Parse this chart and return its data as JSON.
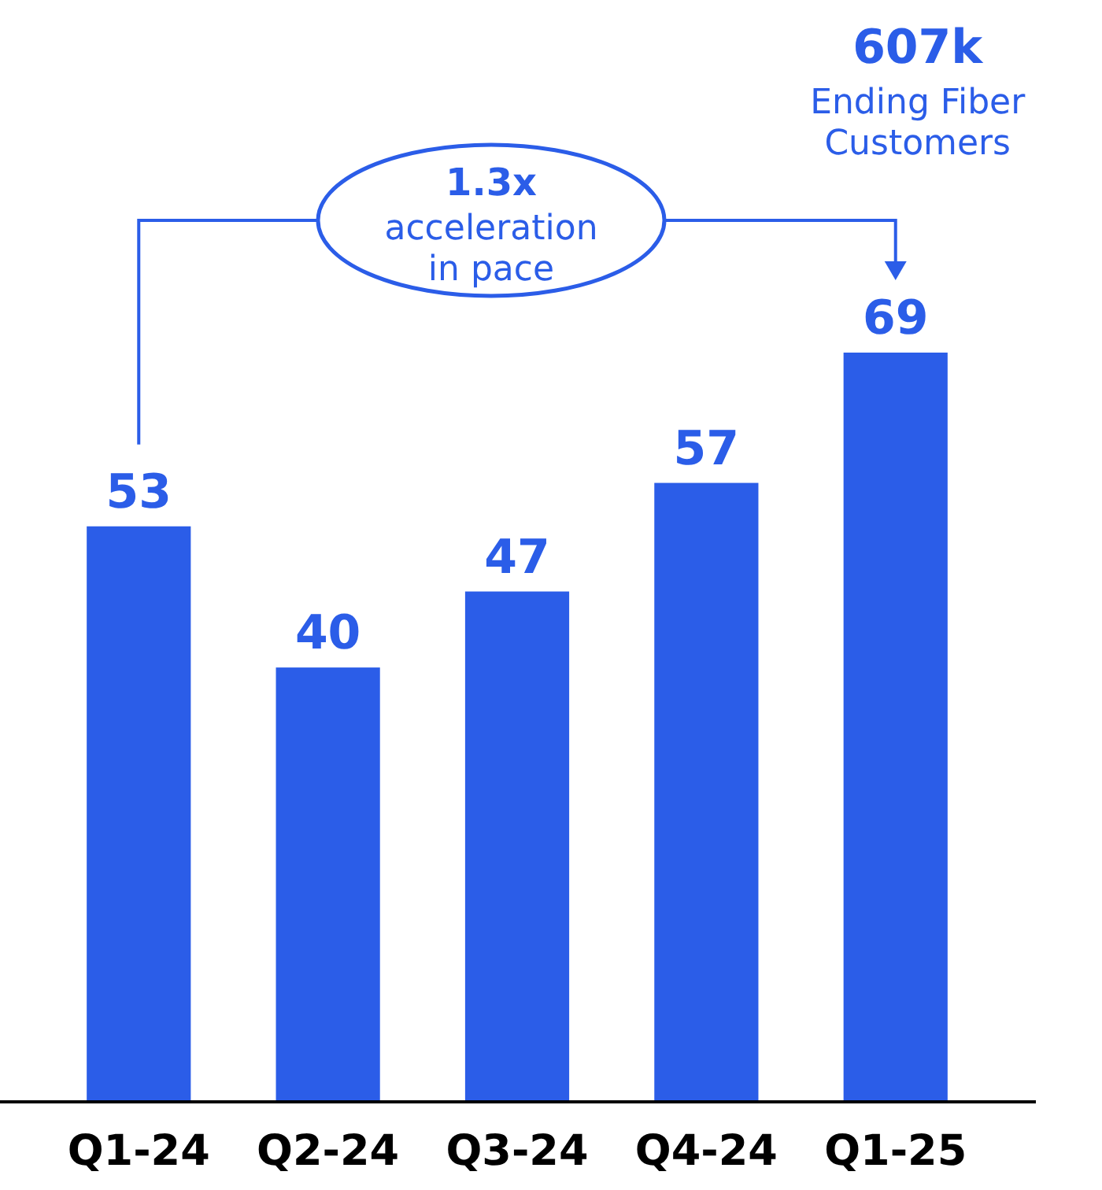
{
  "chart_data": {
    "type": "bar",
    "categories": [
      "Q1-24",
      "Q2-24",
      "Q3-24",
      "Q4-24",
      "Q1-25"
    ],
    "values": [
      53,
      40,
      47,
      57,
      69
    ],
    "color": "#2b5de8",
    "data_labels": true,
    "relative": false,
    "annotations": [
      "1.3x",
      "acceleration in pace",
      "607k",
      "Ending Fiber Customers"
    ]
  }
}
